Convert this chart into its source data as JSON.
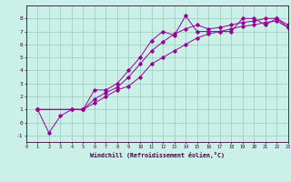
{
  "xlabel": "Windchill (Refroidissement éolien,°C)",
  "bg_color": "#caf0e8",
  "grid_color": "#99ccbb",
  "line_color": "#990099",
  "xlim": [
    0,
    23
  ],
  "ylim": [
    -1.5,
    9.0
  ],
  "xticks": [
    0,
    1,
    2,
    3,
    4,
    5,
    6,
    7,
    8,
    9,
    10,
    11,
    12,
    13,
    14,
    15,
    16,
    17,
    18,
    19,
    20,
    21,
    22,
    23
  ],
  "yticks": [
    -1,
    0,
    1,
    2,
    3,
    4,
    5,
    6,
    7,
    8
  ],
  "line1_x": [
    1,
    2,
    3,
    4,
    5,
    6,
    7,
    8,
    9,
    10,
    11,
    12,
    13,
    14,
    15,
    16,
    17,
    18,
    19,
    20,
    21,
    22,
    23
  ],
  "line1_y": [
    1.0,
    -0.8,
    0.5,
    1.0,
    1.0,
    2.5,
    2.5,
    3.0,
    4.0,
    5.0,
    6.3,
    7.0,
    6.7,
    8.2,
    7.0,
    7.0,
    7.0,
    7.0,
    8.0,
    8.0,
    7.5,
    8.0,
    7.3
  ],
  "line2_x": [
    1,
    4,
    5,
    6,
    7,
    8,
    9,
    10,
    11,
    12,
    13,
    14,
    15,
    16,
    17,
    18,
    19,
    20,
    21,
    22,
    23
  ],
  "line2_y": [
    1.0,
    1.0,
    1.0,
    1.8,
    2.3,
    2.7,
    3.5,
    4.5,
    5.5,
    6.2,
    6.8,
    7.2,
    7.5,
    7.2,
    7.3,
    7.5,
    7.7,
    7.8,
    8.0,
    8.0,
    7.5
  ],
  "line3_x": [
    1,
    5,
    6,
    7,
    8,
    9,
    10,
    11,
    12,
    13,
    14,
    15,
    16,
    17,
    18,
    19,
    20,
    21,
    22,
    23
  ],
  "line3_y": [
    1.0,
    1.0,
    1.5,
    2.0,
    2.5,
    2.8,
    3.5,
    4.5,
    5.0,
    5.5,
    6.0,
    6.5,
    6.8,
    7.0,
    7.2,
    7.4,
    7.5,
    7.7,
    7.8,
    7.3
  ]
}
